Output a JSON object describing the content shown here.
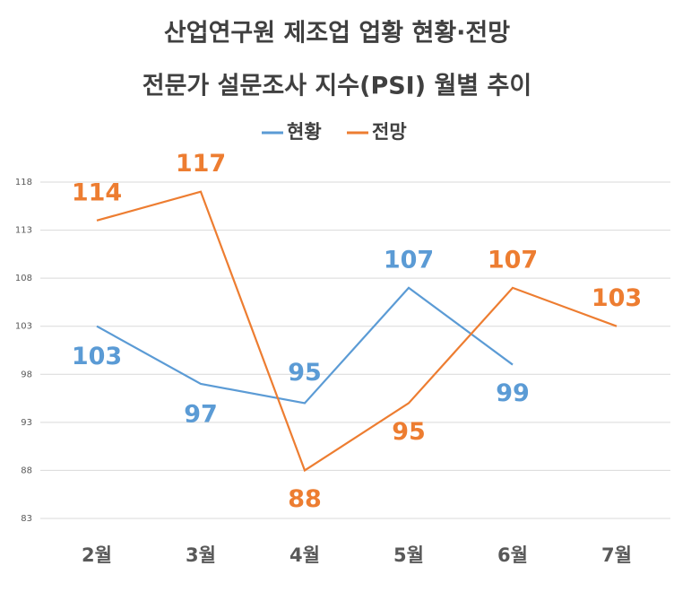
{
  "chart_data": {
    "type": "line",
    "title": [
      "산업연구원 제조업 업황 현황·전망",
      "전문가 설문조사 지수(PSI) 월별 추이"
    ],
    "categories": [
      "2월",
      "3월",
      "4월",
      "5월",
      "6월",
      "7월"
    ],
    "series": [
      {
        "name": "현황",
        "color": "#5b9bd5",
        "values": [
          103,
          97,
          95,
          107,
          99,
          null
        ]
      },
      {
        "name": "전망",
        "color": "#ed7d31",
        "values": [
          114,
          117,
          88,
          95,
          107,
          103
        ]
      }
    ],
    "ylim": [
      83,
      118
    ],
    "yticks": [
      83,
      88,
      93,
      98,
      103,
      108,
      113,
      118
    ],
    "grid": true,
    "legend": "top"
  }
}
